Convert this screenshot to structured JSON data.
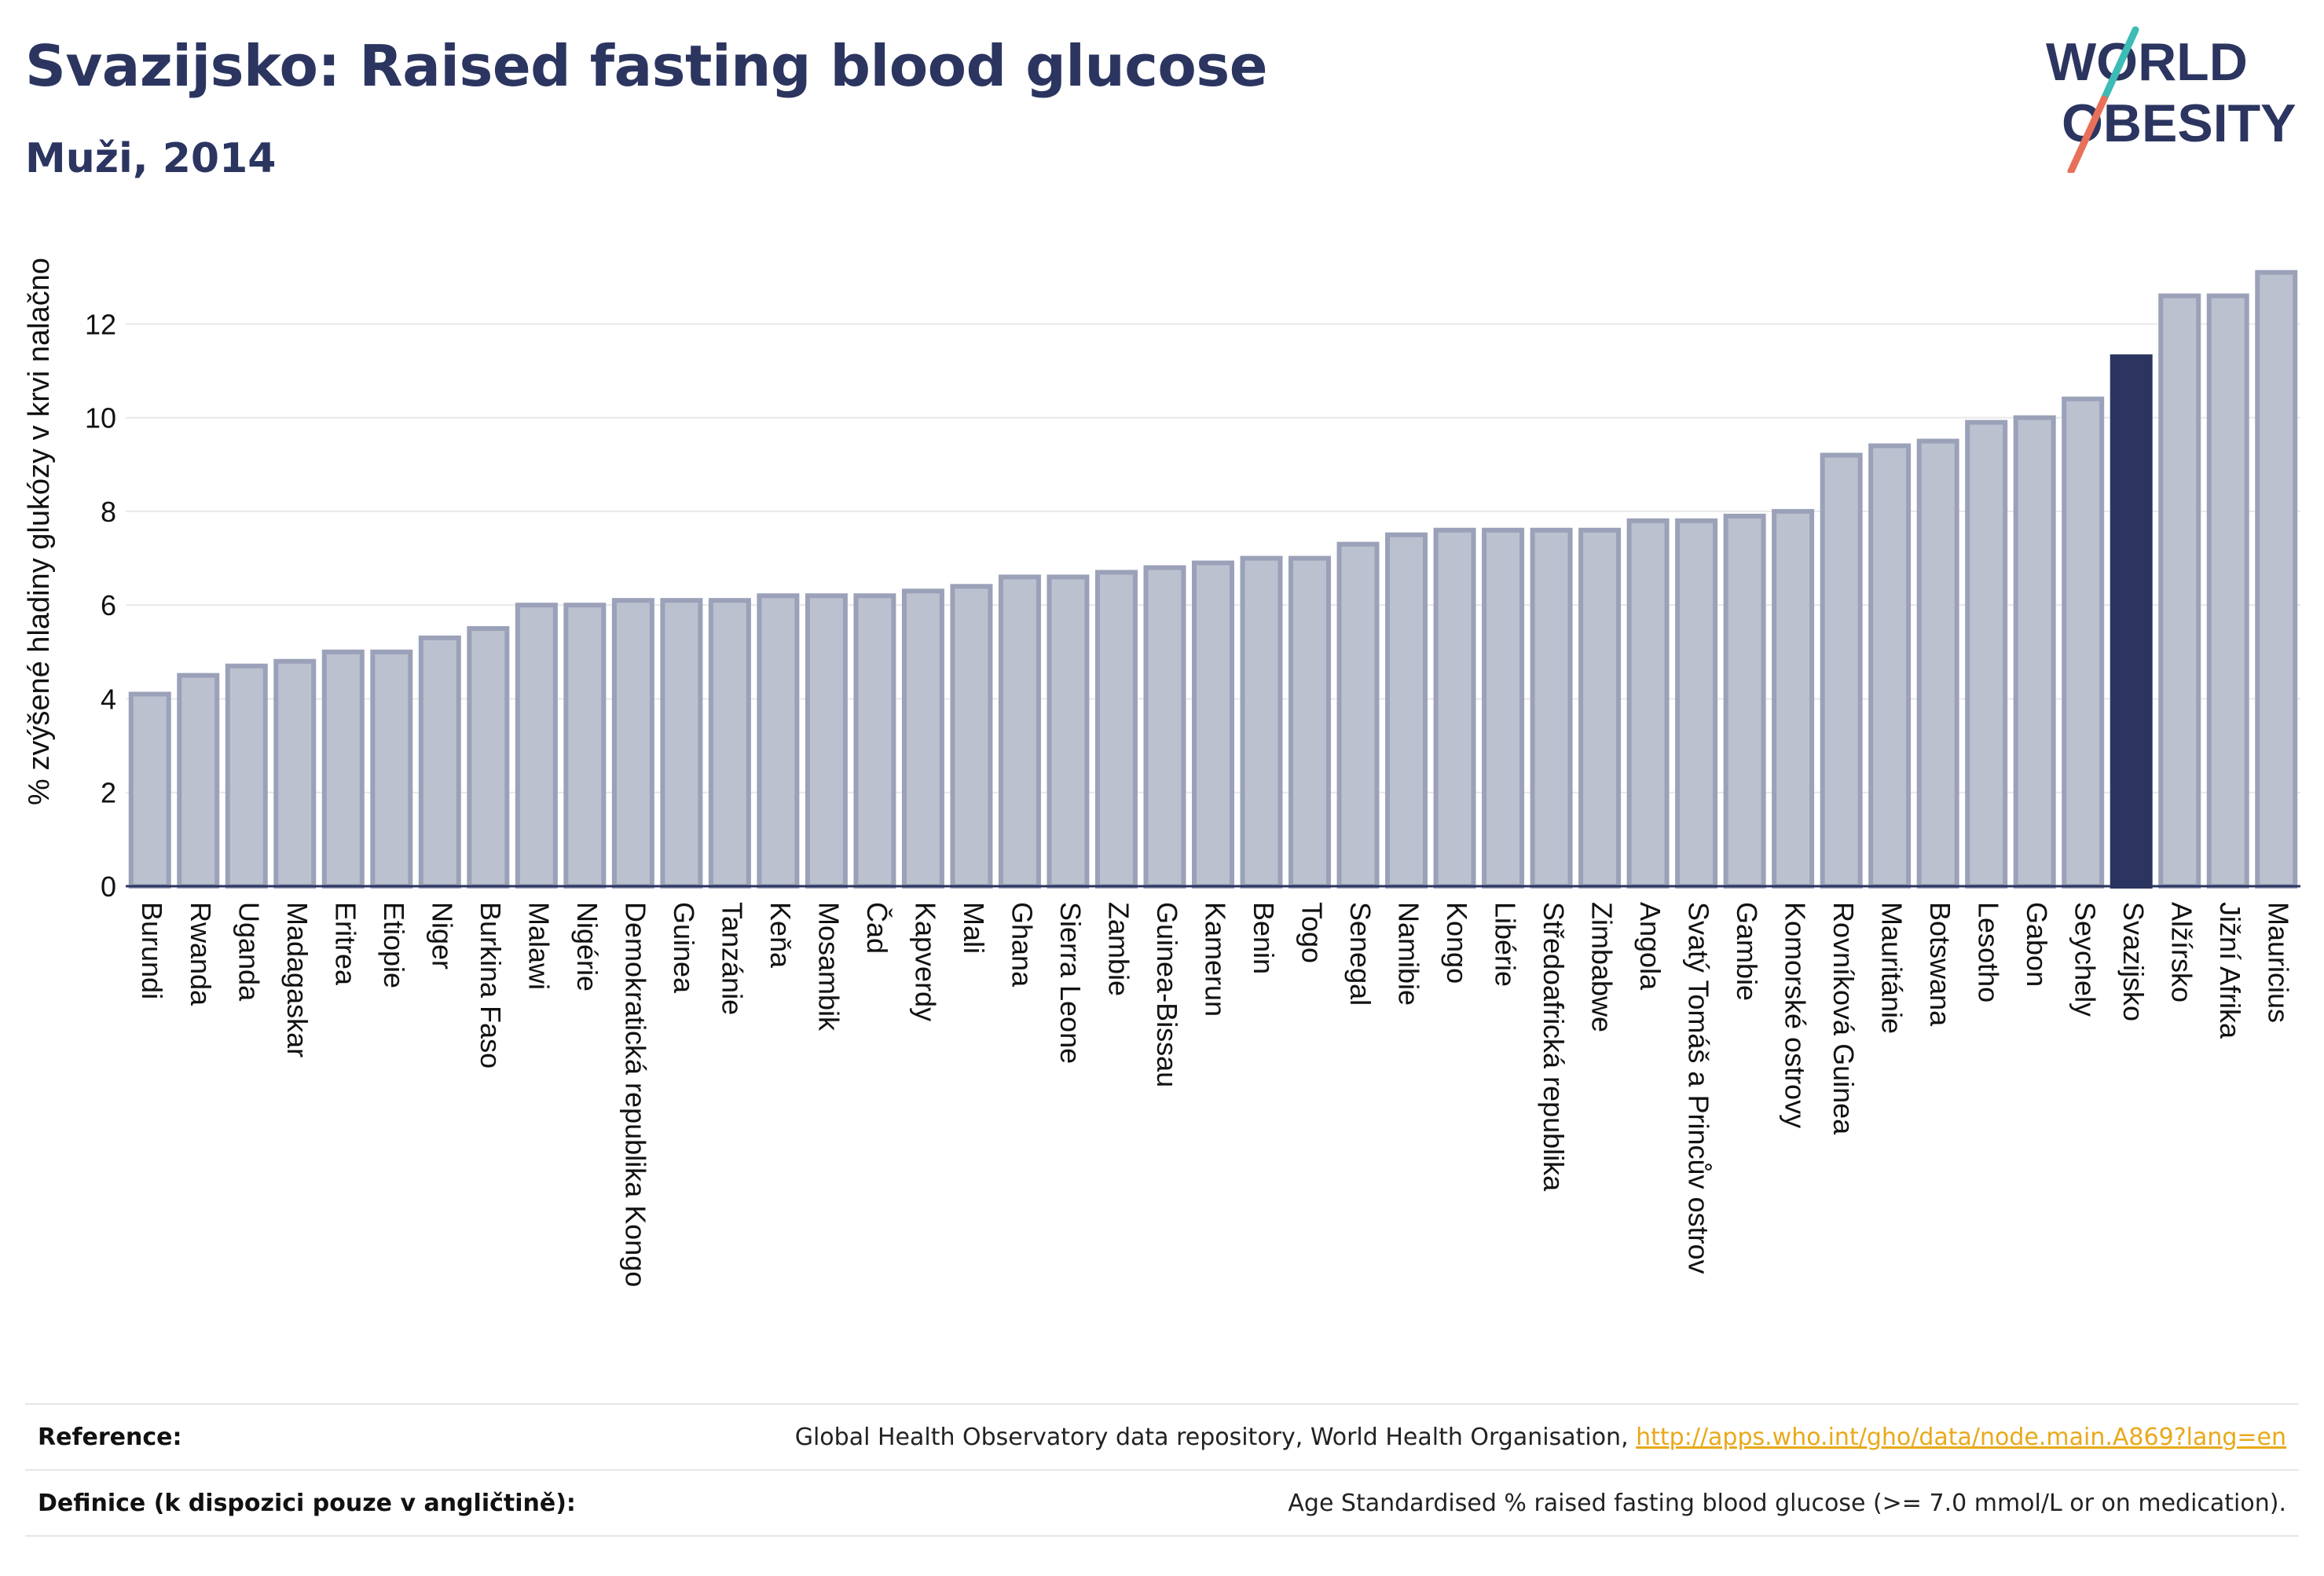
{
  "header": {
    "title": "Svazijsko: Raised fasting blood glucose",
    "subtitle": "Muži, 2014"
  },
  "logo": {
    "line1": "WORLD",
    "line2": "OBESITY"
  },
  "colors": {
    "title": "#2b3560",
    "bar_fill": "#bcc1cf",
    "bar_stroke": "#9aa1b8",
    "highlight": "#2b3560",
    "grid": "#e8e8e8",
    "link": "#e8a91a",
    "logo_slash_top": "#3cbcb4",
    "logo_slash_bottom": "#e8705a"
  },
  "chart_data": {
    "type": "bar",
    "ylabel": "% zvýšené hladiny glukózy v krvi nalačno",
    "xlabel": "",
    "ylim": [
      0,
      13.8
    ],
    "yticks": [
      0,
      2,
      4,
      6,
      8,
      10,
      12
    ],
    "grid": true,
    "highlight": "Svazijsko",
    "categories": [
      "Burundi",
      "Rwanda",
      "Uganda",
      "Madagaskar",
      "Eritrea",
      "Etiopie",
      "Niger",
      "Burkina Faso",
      "Malawi",
      "Nigérie",
      "Demokratická republika Kongo",
      "Guinea",
      "Tanzánie",
      "Keňa",
      "Mosambik",
      "Čad",
      "Kapverdy",
      "Mali",
      "Ghana",
      "Sierra Leone",
      "Zambie",
      "Guinea-Bissau",
      "Kamerun",
      "Benin",
      "Togo",
      "Senegal",
      "Namibie",
      "Kongo",
      "Libérie",
      "Středoafrická republika",
      "Zimbabwe",
      "Angola",
      "Svatý Tomáš a Princův ostrov",
      "Gambie",
      "Komorské ostrovy",
      "Rovníková Guinea",
      "Mauritánie",
      "Botswana",
      "Lesotho",
      "Gabon",
      "Seychely",
      "Svazijsko",
      "Alžírsko",
      "Jižní Afrika",
      "Mauricius"
    ],
    "values": [
      4.1,
      4.5,
      4.7,
      4.8,
      5.0,
      5.0,
      5.3,
      5.5,
      6.0,
      6.0,
      6.1,
      6.1,
      6.1,
      6.2,
      6.2,
      6.2,
      6.3,
      6.4,
      6.6,
      6.6,
      6.7,
      6.8,
      6.9,
      7.0,
      7.0,
      7.3,
      7.5,
      7.6,
      7.6,
      7.6,
      7.6,
      7.8,
      7.8,
      7.9,
      8.0,
      9.2,
      9.4,
      9.5,
      9.9,
      10.0,
      10.4,
      11.3,
      12.6,
      12.6,
      13.1
    ]
  },
  "footer": {
    "reference_label": "Reference:",
    "reference_text": "Global Health Observatory data repository, World Health Organisation, ",
    "reference_link": "http://apps.who.int/gho/data/node.main.A869?lang=en",
    "definition_label": "Definice (k dispozici pouze v angličtině):",
    "definition_text": "Age Standardised % raised fasting blood glucose (>= 7.0 mmol/L or on medication)."
  }
}
